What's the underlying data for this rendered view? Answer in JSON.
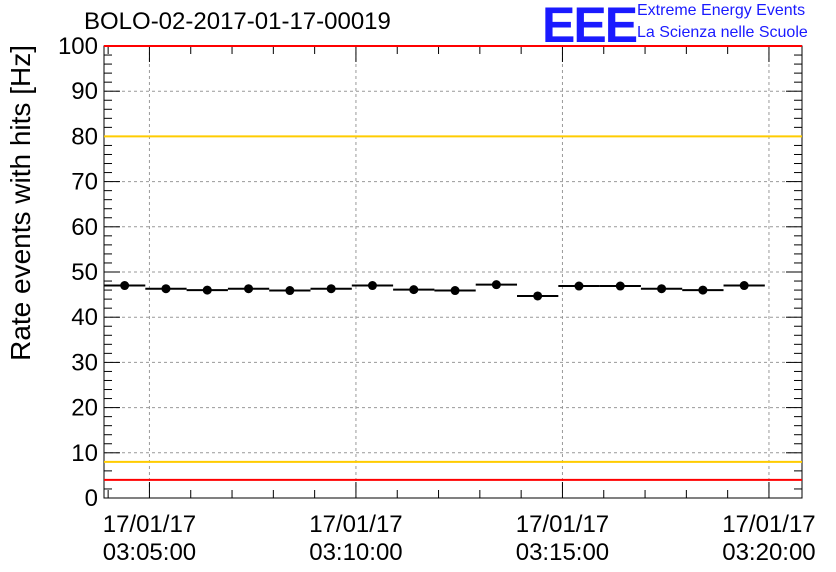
{
  "chart_data": {
    "type": "scatter",
    "title": "BOLO-02-2017-01-17-00019",
    "ylabel": "Rate events with hits [Hz]",
    "xlabel": "",
    "ylim": [
      0,
      100
    ],
    "yticks": [
      0,
      10,
      20,
      30,
      40,
      50,
      60,
      70,
      80,
      90,
      100
    ],
    "xrange_min": [
      3.9,
      20.8
    ],
    "xtick_minutes": [
      5,
      10,
      15,
      20
    ],
    "xtick_labels": [
      {
        "date": "17/01/17",
        "time": "03:05:00"
      },
      {
        "date": "17/01/17",
        "time": "03:10:00"
      },
      {
        "date": "17/01/17",
        "time": "03:15:00"
      },
      {
        "date": "17/01/17",
        "time": "03:20:00"
      }
    ],
    "bin_width_min": 1.0,
    "points": [
      {
        "x": 4.4,
        "y": 47.0
      },
      {
        "x": 5.4,
        "y": 46.3
      },
      {
        "x": 6.4,
        "y": 46.0
      },
      {
        "x": 7.4,
        "y": 46.3
      },
      {
        "x": 8.4,
        "y": 45.9
      },
      {
        "x": 9.4,
        "y": 46.3
      },
      {
        "x": 10.4,
        "y": 47.0
      },
      {
        "x": 11.4,
        "y": 46.1
      },
      {
        "x": 12.4,
        "y": 45.9
      },
      {
        "x": 13.4,
        "y": 47.2
      },
      {
        "x": 14.4,
        "y": 44.7
      },
      {
        "x": 15.4,
        "y": 46.9
      },
      {
        "x": 16.4,
        "y": 46.9
      },
      {
        "x": 17.4,
        "y": 46.3
      },
      {
        "x": 18.4,
        "y": 46.0
      },
      {
        "x": 19.4,
        "y": 47.0
      }
    ],
    "reference_lines": [
      {
        "y": 100,
        "color": "#ff0000"
      },
      {
        "y": 80,
        "color": "#ffcc00"
      },
      {
        "y": 8,
        "color": "#ffcc00"
      },
      {
        "y": 4,
        "color": "#ff0000"
      }
    ],
    "grid": true
  },
  "logo": {
    "mark": "EEE",
    "line1": "Extreme Energy Events",
    "line2": "La Scienza nelle Scuole"
  }
}
